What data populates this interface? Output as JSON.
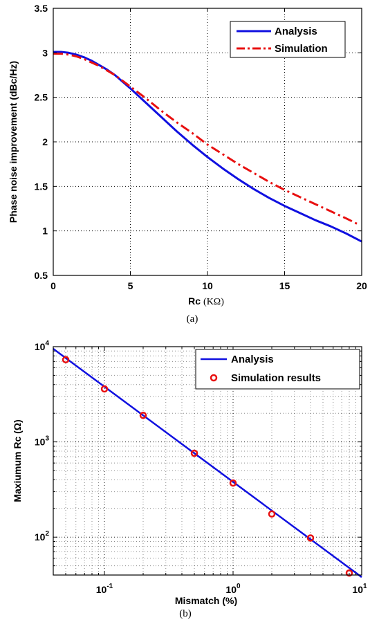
{
  "chart_data": [
    {
      "type": "line",
      "xlabel": "Rc (KΩ)",
      "xlabel_main": "Rc",
      "xlabel_unit": "(KΩ)",
      "ylabel": "Phase noise improvement (dBc/Hz)",
      "xlim": [
        0,
        20
      ],
      "ylim": [
        0.5,
        3.5
      ],
      "xticks": [
        0,
        5,
        10,
        15,
        20
      ],
      "yticks": [
        0.5,
        1,
        1.5,
        2,
        2.5,
        3,
        3.5
      ],
      "xtick_labels": [
        "0",
        "5",
        "10",
        "15",
        "20"
      ],
      "ytick_labels": [
        "0.5",
        "1",
        "1.5",
        "2",
        "2.5",
        "3",
        "3.5"
      ],
      "grid": true,
      "legend_position": "top-right",
      "caption": "(a)",
      "series": [
        {
          "name": "Analysis",
          "color": "#1010e0",
          "style": "solid",
          "x": [
            0,
            0.5,
            1,
            1.5,
            2,
            2.5,
            3,
            3.5,
            4,
            5,
            6,
            7,
            8,
            9,
            10,
            11,
            12,
            13,
            14,
            15,
            16,
            17,
            18,
            19,
            20
          ],
          "y": [
            3.01,
            3.01,
            3.0,
            2.98,
            2.95,
            2.91,
            2.86,
            2.81,
            2.75,
            2.6,
            2.44,
            2.28,
            2.12,
            1.97,
            1.83,
            1.7,
            1.58,
            1.47,
            1.37,
            1.28,
            1.2,
            1.12,
            1.05,
            0.97,
            0.88
          ]
        },
        {
          "name": "Simulation",
          "color": "#e81010",
          "style": "dashdot",
          "x": [
            0,
            0.5,
            1,
            1.5,
            2,
            2.5,
            3,
            3.5,
            4,
            5,
            6,
            7,
            8,
            9,
            10,
            11,
            12,
            13,
            14,
            15,
            16,
            17,
            18,
            19,
            19.7
          ],
          "y": [
            2.99,
            2.99,
            2.98,
            2.96,
            2.93,
            2.89,
            2.85,
            2.8,
            2.75,
            2.62,
            2.49,
            2.35,
            2.22,
            2.1,
            1.97,
            1.86,
            1.75,
            1.65,
            1.55,
            1.46,
            1.38,
            1.3,
            1.22,
            1.14,
            1.08
          ]
        }
      ]
    },
    {
      "type": "line",
      "xlabel": "Mismatch (%)",
      "ylabel": "Maxiumum Rc (Ω)",
      "xscale": "log",
      "yscale": "log",
      "xlim": [
        0.04,
        10
      ],
      "ylim": [
        40,
        10000
      ],
      "xticks": [
        0.1,
        1,
        10
      ],
      "yticks": [
        100,
        1000,
        10000
      ],
      "xtick_labels": [
        {
          "base": "10",
          "exp": "-1"
        },
        {
          "base": "10",
          "exp": "0"
        },
        {
          "base": "10",
          "exp": "1"
        }
      ],
      "ytick_labels": [
        {
          "base": "10",
          "exp": "2"
        },
        {
          "base": "10",
          "exp": "3"
        },
        {
          "base": "10",
          "exp": "4"
        }
      ],
      "grid": true,
      "legend_position": "top-right",
      "caption": "(b)",
      "series": [
        {
          "name": "Analysis",
          "color": "#1010e0",
          "style": "solid",
          "x": [
            0.04,
            10
          ],
          "y": [
            9500,
            38
          ]
        },
        {
          "name": "Simulation results",
          "color": "#e81010",
          "style": "markers",
          "marker": "circle",
          "x": [
            0.05,
            0.1,
            0.2,
            0.5,
            1,
            2,
            4,
            8
          ],
          "y": [
            7300,
            3600,
            1900,
            760,
            370,
            175,
            98,
            42
          ]
        }
      ]
    }
  ]
}
